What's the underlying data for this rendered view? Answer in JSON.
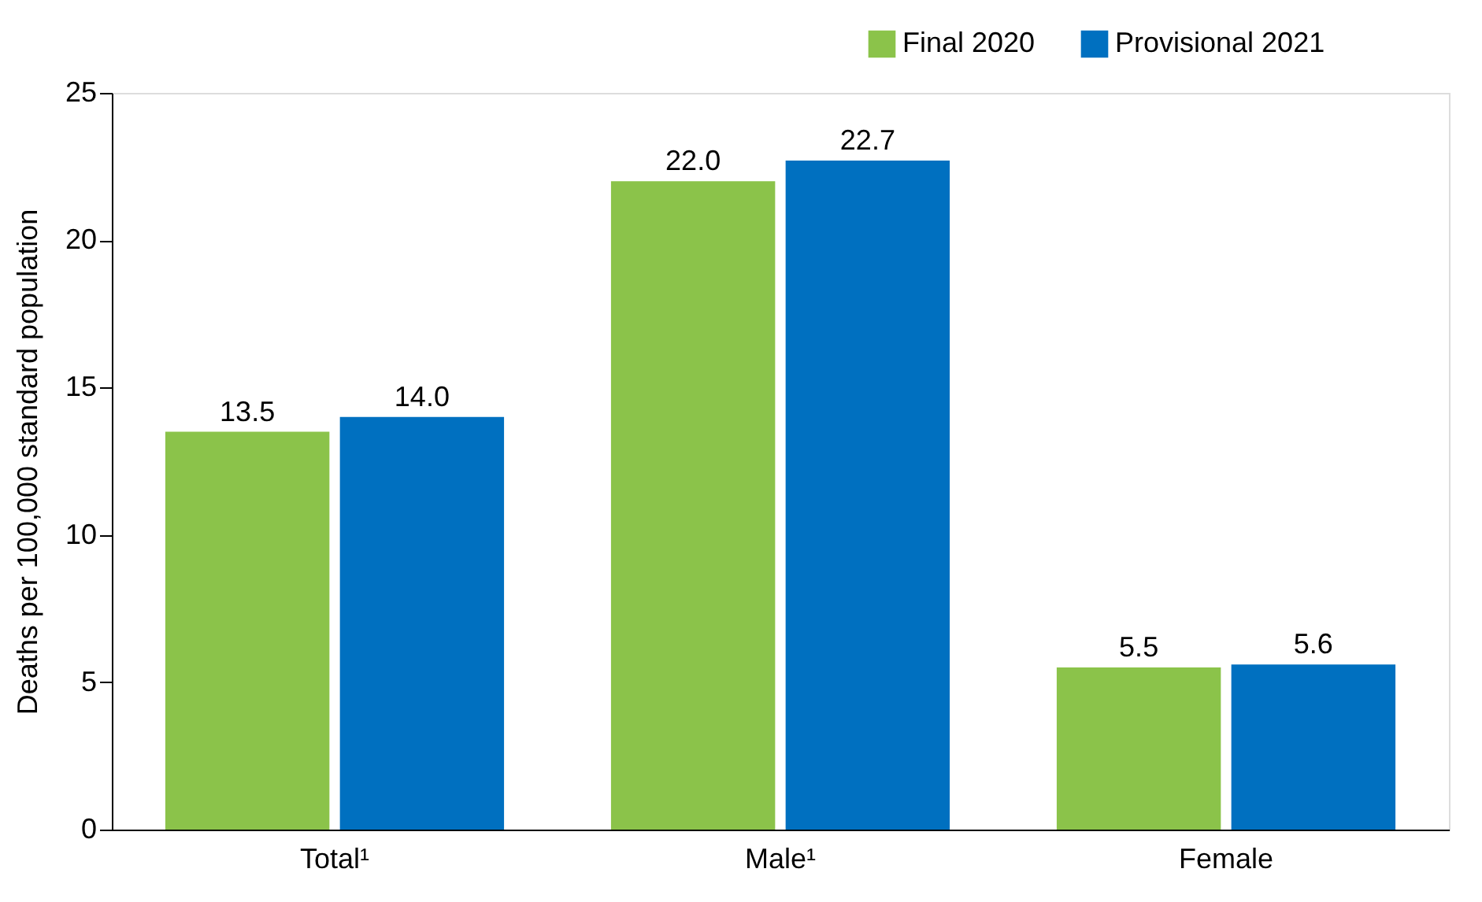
{
  "chart_data": {
    "type": "bar",
    "categories": [
      "Total¹",
      "Male¹",
      "Female"
    ],
    "series": [
      {
        "name": "Final 2020",
        "color": "#8bc34a",
        "values": [
          13.5,
          22.0,
          5.5
        ],
        "value_labels": [
          "13.5",
          "22.0",
          "5.5"
        ]
      },
      {
        "name": "Provisional 2021",
        "color": "#0070c0",
        "values": [
          14.0,
          22.7,
          5.6
        ],
        "value_labels": [
          "14.0",
          "22.7",
          "5.6"
        ]
      }
    ],
    "ylabel": "Deaths per 100,000 standard population",
    "ylim": [
      0,
      25
    ],
    "yticks": [
      0,
      5,
      10,
      15,
      20,
      25
    ],
    "grid": false,
    "legend": "top right"
  }
}
